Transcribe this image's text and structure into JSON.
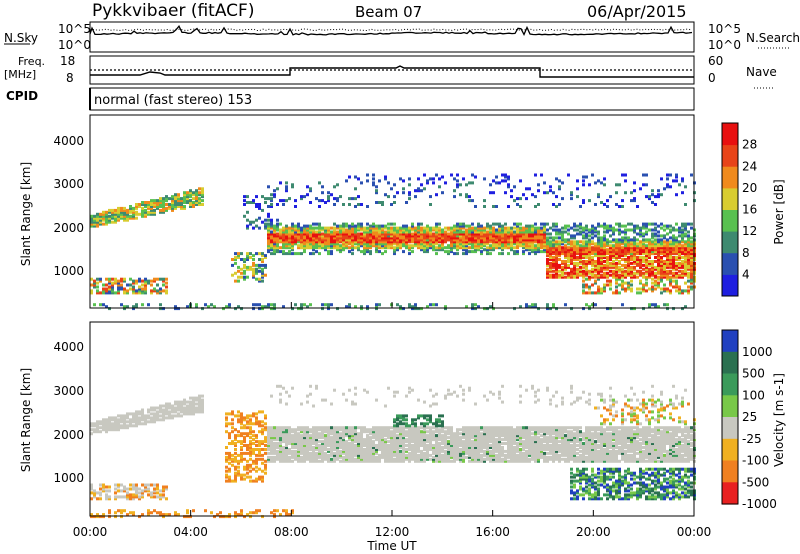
{
  "header": {
    "station": "Pykkvibaer (fitACF)",
    "beam": "Beam 07",
    "date": "06/Apr/2015"
  },
  "sky_panel": {
    "left_label": "N.Sky",
    "left_ticks": [
      "10^5",
      "10^0"
    ],
    "right_ticks": [
      "10^5",
      "10^0"
    ],
    "right_label": "N.Search"
  },
  "freq_panel": {
    "left_label_1": "Freq.",
    "left_label_2": "[MHz]",
    "left_ticks": [
      "18",
      "8"
    ],
    "right_ticks": [
      "60",
      "0"
    ],
    "right_label": "Nave",
    "cpid_label": "CPID"
  },
  "cpid_text": "normal (fast stereo) 153",
  "chart_data": [
    {
      "type": "heatmap",
      "parameter": "Power",
      "ylabel": "Slant Range [km]",
      "y_ticks": [
        "1000",
        "2000",
        "3000",
        "4000"
      ],
      "ylim": [
        180,
        4600
      ],
      "colorbar": {
        "label": "Power [dB]",
        "ticks": [
          "4",
          "8",
          "12",
          "16",
          "20",
          "24",
          "28"
        ],
        "colors": [
          "#1f1fe0",
          "#2a50b0",
          "#3e8a70",
          "#58c050",
          "#d8cc30",
          "#f08a1c",
          "#e84418",
          "#e81010"
        ]
      },
      "features": [
        {
          "name": "early-ground-scatter",
          "time": [
            "00:00",
            "03:00"
          ],
          "range_km": [
            600,
            900
          ]
        },
        {
          "name": "morning-band",
          "time": [
            "00:00",
            "04:30"
          ],
          "range_km": [
            2100,
            2700
          ]
        },
        {
          "name": "main-f-region",
          "time": [
            "07:00",
            "24:00"
          ],
          "range_km": [
            1500,
            2100
          ]
        },
        {
          "name": "evening-strong",
          "time": [
            "18:00",
            "24:00"
          ],
          "range_km": [
            900,
            1500
          ]
        }
      ]
    },
    {
      "type": "heatmap",
      "parameter": "Velocity",
      "ylabel": "Slant Range [km]",
      "y_ticks": [
        "1000",
        "2000",
        "3000",
        "4000"
      ],
      "ylim": [
        180,
        4600
      ],
      "colorbar": {
        "label": "Velocity [m s-1]",
        "ticks": [
          "1000",
          "500",
          "100",
          "25",
          "-25",
          "-100",
          "-500",
          "-1000"
        ],
        "colors": [
          "#2040c0",
          "#2a7050",
          "#3a9a5a",
          "#78c848",
          "#c8c8c0",
          "#f0b020",
          "#f08020",
          "#e82020"
        ]
      },
      "features": [
        {
          "name": "ground-scatter",
          "time": [
            "08:00",
            "24:00"
          ],
          "range_km": [
            1500,
            2300
          ],
          "velocity": "-25..25"
        },
        {
          "name": "westward-flow",
          "time": [
            "05:30",
            "07:00"
          ],
          "range_km": [
            1200,
            2500
          ],
          "velocity": "-100..-500"
        },
        {
          "name": "eastward-flow",
          "time": [
            "19:00",
            "24:00"
          ],
          "range_km": [
            600,
            1300
          ],
          "velocity": "100..500"
        }
      ]
    }
  ],
  "x_axis": {
    "ticks": [
      "00:00",
      "04:00",
      "08:00",
      "12:00",
      "16:00",
      "20:00",
      "00:00"
    ],
    "label": "Time UT"
  }
}
